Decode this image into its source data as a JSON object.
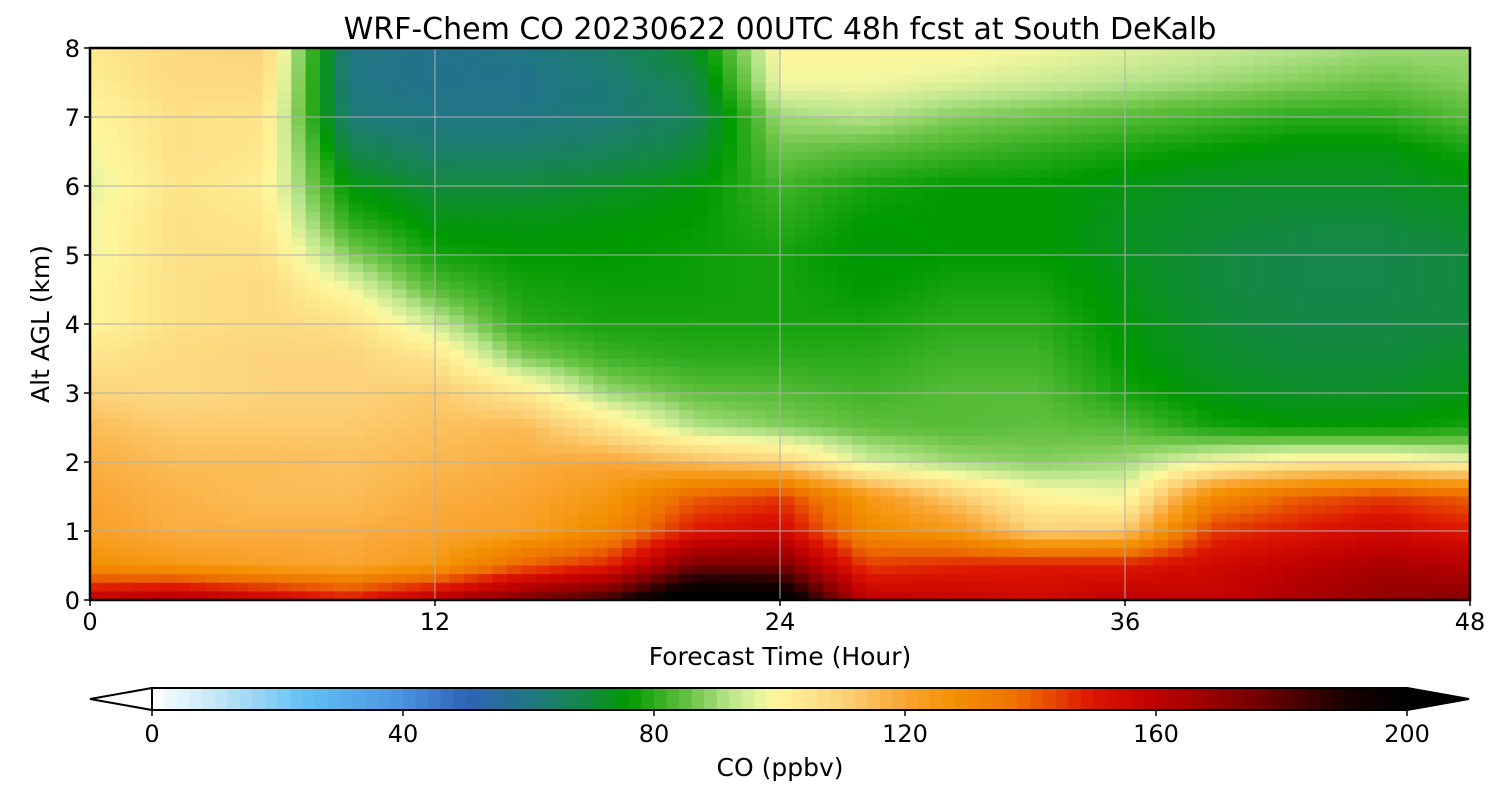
{
  "chart_data": {
    "type": "heatmap",
    "title": "WRF-Chem CO  20230622 00UTC 48h fcst at South DeKalb",
    "xlabel": "Forecast Time (Hour)",
    "ylabel": "Alt AGL (km)",
    "xlim": [
      0,
      48
    ],
    "ylim": [
      0,
      8
    ],
    "xticks": [
      0,
      12,
      24,
      36,
      48
    ],
    "yticks": [
      0,
      1,
      2,
      3,
      4,
      5,
      6,
      7,
      8
    ],
    "grid": true,
    "x": [
      0,
      3,
      6,
      9,
      12,
      15,
      18,
      21,
      24,
      27,
      30,
      33,
      36,
      39,
      42,
      45,
      48
    ],
    "y": [
      0,
      0.5,
      1,
      1.5,
      2,
      2.5,
      3,
      3.5,
      4,
      4.5,
      5,
      5.5,
      6,
      6.5,
      7,
      7.5,
      8
    ],
    "z": [
      [
        160,
        165,
        158,
        150,
        162,
        175,
        185,
        210,
        205,
        160,
        158,
        155,
        160,
        158,
        165,
        170,
        172
      ],
      [
        128,
        125,
        122,
        120,
        125,
        140,
        148,
        175,
        175,
        145,
        148,
        150,
        150,
        155,
        160,
        165,
        162
      ],
      [
        122,
        118,
        118,
        118,
        120,
        122,
        130,
        150,
        155,
        130,
        125,
        110,
        112,
        145,
        150,
        155,
        150
      ],
      [
        120,
        117,
        115,
        115,
        118,
        120,
        125,
        140,
        145,
        125,
        112,
        100,
        98,
        130,
        140,
        145,
        140
      ],
      [
        118,
        115,
        115,
        114,
        116,
        118,
        120,
        115,
        110,
        95,
        90,
        88,
        90,
        98,
        102,
        102,
        98
      ],
      [
        115,
        112,
        112,
        112,
        114,
        116,
        105,
        92,
        88,
        85,
        84,
        85,
        84,
        78,
        76,
        76,
        78
      ],
      [
        110,
        108,
        110,
        110,
        112,
        104,
        90,
        85,
        84,
        82,
        84,
        84,
        78,
        74,
        72,
        72,
        74
      ],
      [
        105,
        108,
        110,
        110,
        105,
        88,
        82,
        80,
        80,
        80,
        82,
        82,
        76,
        72,
        70,
        70,
        72
      ],
      [
        100,
        106,
        108,
        106,
        94,
        80,
        78,
        78,
        78,
        78,
        80,
        80,
        75,
        71,
        69,
        69,
        70
      ],
      [
        100,
        106,
        108,
        98,
        84,
        78,
        77,
        77,
        78,
        76,
        78,
        78,
        74,
        70,
        68,
        68,
        70
      ],
      [
        98,
        106,
        106,
        88,
        78,
        76,
        76,
        77,
        78,
        75,
        76,
        76,
        73,
        70,
        68,
        68,
        70
      ],
      [
        98,
        106,
        104,
        80,
        74,
        74,
        75,
        76,
        80,
        76,
        76,
        76,
        73,
        71,
        70,
        70,
        72
      ],
      [
        96,
        105,
        102,
        75,
        70,
        70,
        72,
        75,
        82,
        78,
        76,
        76,
        74,
        72,
        72,
        72,
        74
      ],
      [
        98,
        106,
        104,
        68,
        64,
        64,
        66,
        70,
        86,
        84,
        82,
        80,
        78,
        76,
        74,
        74,
        78
      ],
      [
        100,
        106,
        105,
        62,
        60,
        60,
        62,
        66,
        90,
        92,
        88,
        86,
        84,
        82,
        80,
        80,
        84
      ],
      [
        102,
        108,
        108,
        60,
        58,
        58,
        62,
        68,
        98,
        98,
        96,
        94,
        92,
        90,
        88,
        86,
        88
      ],
      [
        104,
        108,
        110,
        60,
        58,
        60,
        64,
        72,
        100,
        100,
        100,
        98,
        96,
        94,
        92,
        90,
        90
      ]
    ],
    "colorbar": {
      "label": "CO  (ppbv)",
      "ticks": [
        0,
        40,
        80,
        120,
        160,
        200
      ],
      "min": 0,
      "max": 200,
      "extend": "both",
      "orientation": "horizontal",
      "stops": [
        {
          "v": 0,
          "c": "#ffffff"
        },
        {
          "v": 16,
          "c": "#9fd7f3"
        },
        {
          "v": 24,
          "c": "#62c2f5"
        },
        {
          "v": 40,
          "c": "#4a92e0"
        },
        {
          "v": 50,
          "c": "#2f63b8"
        },
        {
          "v": 62,
          "c": "#1d7a77"
        },
        {
          "v": 70,
          "c": "#128a3d"
        },
        {
          "v": 76,
          "c": "#009a00"
        },
        {
          "v": 86,
          "c": "#6cc446"
        },
        {
          "v": 92,
          "c": "#b8e48c"
        },
        {
          "v": 98,
          "c": "#f4f7a0"
        },
        {
          "v": 100,
          "c": "#fff59a"
        },
        {
          "v": 110,
          "c": "#fcd37a"
        },
        {
          "v": 120,
          "c": "#faa533"
        },
        {
          "v": 128,
          "c": "#f39000"
        },
        {
          "v": 138,
          "c": "#ee7000"
        },
        {
          "v": 150,
          "c": "#dd1500"
        },
        {
          "v": 160,
          "c": "#c00000"
        },
        {
          "v": 175,
          "c": "#7a0000"
        },
        {
          "v": 190,
          "c": "#1a0000"
        },
        {
          "v": 200,
          "c": "#000000"
        }
      ]
    }
  }
}
